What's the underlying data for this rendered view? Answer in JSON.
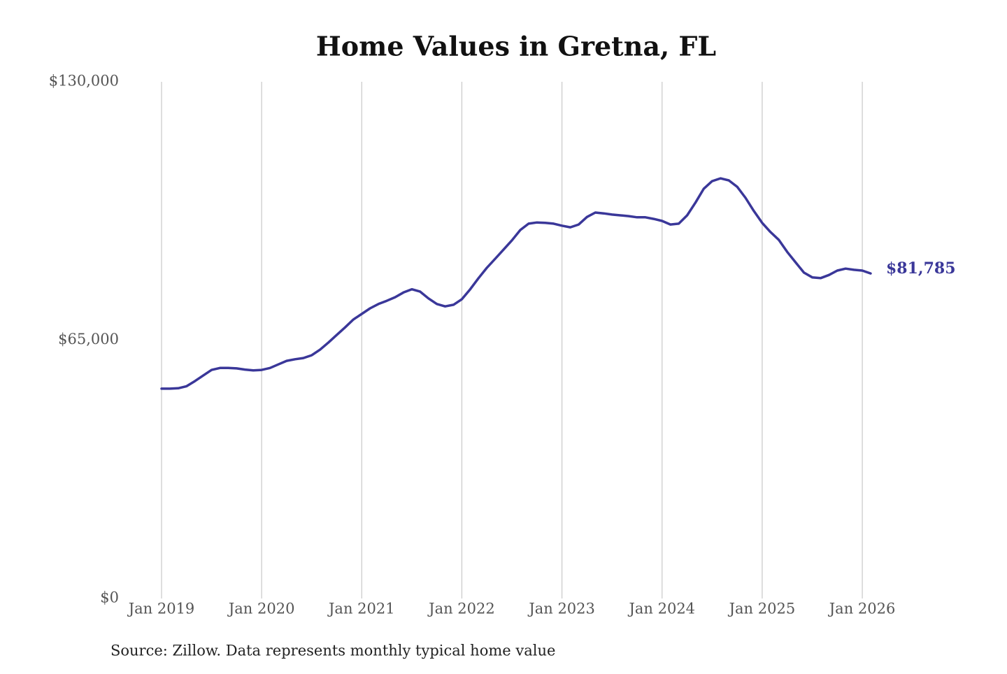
{
  "chart_data": {
    "type": "line",
    "title": "Home Values in Gretna, FL",
    "source": "Source: Zillow. Data represents monthly typical home value",
    "color": "#3a3799",
    "grid": true,
    "x": [
      "2019-01",
      "2019-02",
      "2019-03",
      "2019-04",
      "2019-05",
      "2019-06",
      "2019-07",
      "2019-08",
      "2019-09",
      "2019-10",
      "2019-11",
      "2019-12",
      "2020-01",
      "2020-02",
      "2020-03",
      "2020-04",
      "2020-05",
      "2020-06",
      "2020-07",
      "2020-08",
      "2020-09",
      "2020-10",
      "2020-11",
      "2020-12",
      "2021-01",
      "2021-02",
      "2021-03",
      "2021-04",
      "2021-05",
      "2021-06",
      "2021-07",
      "2021-08",
      "2021-09",
      "2021-10",
      "2021-11",
      "2021-12",
      "2022-01",
      "2022-02",
      "2022-03",
      "2022-04",
      "2022-05",
      "2022-06",
      "2022-07",
      "2022-08",
      "2022-09",
      "2022-10",
      "2022-11",
      "2022-12",
      "2023-01",
      "2023-02",
      "2023-03",
      "2023-04",
      "2023-05",
      "2023-06",
      "2023-07",
      "2023-08",
      "2023-09",
      "2023-10",
      "2023-11",
      "2023-12",
      "2024-01",
      "2024-02",
      "2024-03",
      "2024-04",
      "2024-05",
      "2024-06",
      "2024-07",
      "2024-08",
      "2024-09",
      "2024-10",
      "2024-11",
      "2024-12",
      "2025-01",
      "2025-02",
      "2025-03",
      "2025-04",
      "2025-05",
      "2025-06",
      "2025-07",
      "2025-08",
      "2025-09",
      "2025-10",
      "2025-11",
      "2025-12",
      "2026-01",
      "2026-02"
    ],
    "values": [
      52800,
      52800,
      52900,
      53400,
      54700,
      56100,
      57500,
      58000,
      58000,
      57900,
      57600,
      57400,
      57500,
      58000,
      58900,
      59800,
      60200,
      60500,
      61200,
      62600,
      64400,
      66300,
      68200,
      70200,
      71600,
      73000,
      74100,
      74900,
      75800,
      77000,
      77800,
      77200,
      75500,
      74100,
      73500,
      73900,
      75300,
      77800,
      80600,
      83200,
      85500,
      87800,
      90100,
      92700,
      94300,
      94600,
      94500,
      94300,
      93800,
      93400,
      94100,
      96000,
      97100,
      96900,
      96600,
      96400,
      96200,
      95900,
      95900,
      95500,
      95000,
      94100,
      94300,
      96400,
      99600,
      103100,
      105000,
      105700,
      105200,
      103600,
      100800,
      97500,
      94500,
      92200,
      90200,
      87200,
      84600,
      82000,
      80800,
      80600,
      81400,
      82500,
      83000,
      82700,
      82500,
      81785
    ],
    "value_labels": [
      null,
      null,
      null,
      null,
      null,
      null,
      null,
      null,
      null,
      null,
      null,
      null,
      null,
      null,
      null,
      null,
      null,
      null,
      null,
      null,
      null,
      null,
      null,
      null,
      null,
      null,
      null,
      null,
      null,
      null,
      null,
      null,
      null,
      null,
      null,
      null,
      null,
      null,
      null,
      null,
      null,
      null,
      null,
      null,
      null,
      null,
      null,
      null,
      null,
      null,
      null,
      null,
      null,
      null,
      null,
      null,
      null,
      null,
      null,
      null,
      null,
      null,
      null,
      null,
      null,
      null,
      null,
      null,
      null,
      null,
      null,
      null,
      null,
      null,
      null,
      null,
      null,
      null,
      null,
      null,
      null,
      null,
      null,
      null,
      null,
      "$81,785"
    ],
    "xlim": [
      "2019-01",
      "2026-02"
    ],
    "xticks": [
      {
        "value": "2019-01",
        "label": "Jan 2019"
      },
      {
        "value": "2020-01",
        "label": "Jan 2020"
      },
      {
        "value": "2021-01",
        "label": "Jan 2021"
      },
      {
        "value": "2022-01",
        "label": "Jan 2022"
      },
      {
        "value": "2023-01",
        "label": "Jan 2023"
      },
      {
        "value": "2024-01",
        "label": "Jan 2024"
      },
      {
        "value": "2025-01",
        "label": "Jan 2025"
      },
      {
        "value": "2026-01",
        "label": "Jan 2026"
      }
    ],
    "ylim": [
      0,
      130000
    ],
    "yticks": [
      {
        "value": 0,
        "label": "$0"
      },
      {
        "value": 65000,
        "label": "$65,000"
      },
      {
        "value": 130000,
        "label": "$130,000"
      }
    ]
  }
}
